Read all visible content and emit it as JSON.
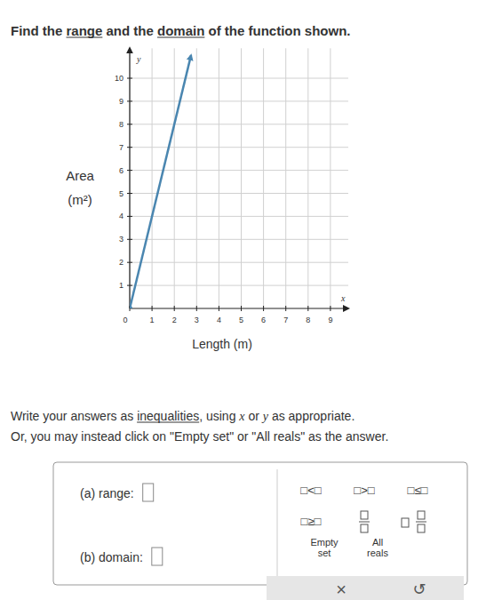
{
  "header": {
    "title_parts": [
      "Find the ",
      "range",
      " and the ",
      "domain",
      " of the function shown."
    ],
    "underlined": [
      1,
      3
    ]
  },
  "chart_data": {
    "type": "line",
    "xlabel": "Length (m)",
    "ylabel": [
      "Area",
      "(m²)"
    ],
    "axis_letters": {
      "x": "x",
      "y": "y"
    },
    "x": [
      0,
      2.75
    ],
    "values": [
      0,
      11
    ],
    "color": "#4a86b0",
    "xlim": [
      0,
      9.8
    ],
    "ylim": [
      0,
      11.3
    ],
    "xticks": [
      0,
      1,
      2,
      3,
      4,
      5,
      6,
      7,
      8,
      9
    ],
    "yticks": [
      1,
      2,
      3,
      4,
      5,
      6,
      7,
      8,
      9,
      10
    ],
    "grid": true
  },
  "instructions": {
    "line1": [
      "Write your answers as ",
      "inequalities",
      ", using ",
      "x",
      " or ",
      "y",
      " as appropriate."
    ],
    "line2": "Or, you may instead click on \"Empty set\" or \"All reals\" as the answer."
  },
  "answers": [
    "(a) range:",
    "(b) domain:"
  ],
  "keypad": {
    "buttons": [
      "□<□",
      "□>□",
      "□≤□",
      "□≥□"
    ],
    "empty_set": [
      "Empty",
      "set"
    ],
    "all_reals": [
      "All",
      "reals"
    ]
  },
  "toolbar": [
    "×",
    "↺"
  ]
}
